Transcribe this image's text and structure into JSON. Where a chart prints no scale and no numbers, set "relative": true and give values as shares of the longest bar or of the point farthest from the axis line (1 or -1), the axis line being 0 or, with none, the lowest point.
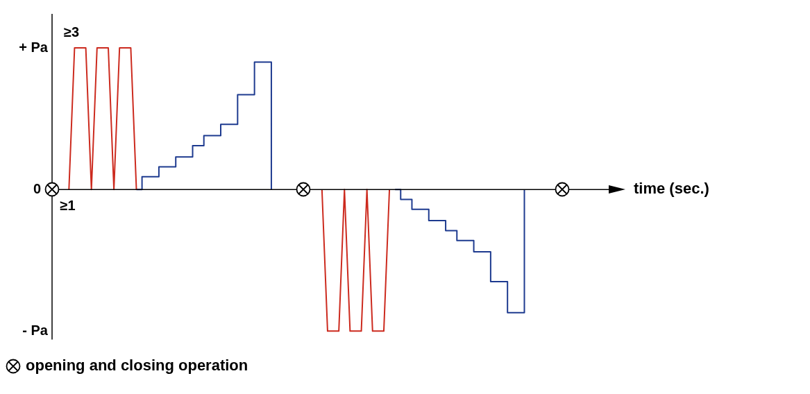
{
  "chart_data": {
    "type": "line",
    "xlabel": "time (sec.)",
    "relative": true,
    "grid": false,
    "line_style": "solid",
    "categories": [
      null,
      null,
      null,
      null,
      null,
      null,
      null,
      null,
      null,
      null,
      null,
      null,
      null,
      null,
      null,
      null,
      null,
      null,
      null,
      null,
      null,
      null,
      null,
      null,
      null,
      null,
      null,
      null,
      null,
      null,
      null,
      null,
      null,
      null,
      null,
      null,
      null,
      null,
      null,
      null,
      null,
      null,
      null,
      null,
      null,
      null,
      null,
      null,
      null,
      null,
      null,
      null,
      null,
      null,
      null,
      null,
      null,
      null,
      null,
      null,
      null,
      null,
      null,
      null,
      null,
      null,
      null,
      null,
      null,
      null,
      null,
      null,
      null,
      null,
      null,
      null,
      null,
      null,
      null,
      null,
      null,
      null,
      null,
      null,
      null,
      null,
      null,
      null,
      null,
      null,
      null,
      null,
      null,
      null,
      null,
      null,
      null,
      null,
      null,
      null
    ],
    "series": [
      {
        "color": "#cc2a1e",
        "values": [
          null,
          null,
          null,
          0,
          1,
          null,
          1,
          0,
          1,
          null,
          1,
          0,
          1,
          null,
          1,
          0,
          null,
          null,
          null,
          null,
          null,
          null,
          null,
          null,
          null,
          null,
          null,
          null,
          null,
          null,
          null,
          null,
          null,
          null,
          null,
          null,
          null,
          null,
          null,
          null,
          null,
          null,
          null,
          null,
          null,
          null,
          null,
          null,
          null,
          null,
          null,
          null,
          null,
          null,
          null,
          null,
          null,
          null,
          null,
          null,
          null,
          null,
          null,
          null,
          null,
          null,
          null,
          null,
          null,
          null,
          null,
          null,
          null,
          null,
          null,
          null,
          null,
          null,
          null,
          null,
          null,
          null,
          null,
          null,
          null,
          null,
          null,
          null,
          null,
          null,
          null,
          null,
          null,
          null,
          null,
          null,
          null,
          null,
          null,
          null
        ]
      },
      {
        "type": "step",
        "color": "#1d3a8f",
        "values": [
          null,
          null,
          null,
          null,
          null,
          null,
          null,
          null,
          null,
          null,
          null,
          null,
          null,
          null,
          null,
          0,
          0.09,
          null,
          null,
          0.16,
          null,
          null,
          0.23,
          null,
          null,
          0.31,
          null,
          0.38,
          null,
          null,
          0.46,
          null,
          null,
          0.67,
          null,
          null,
          0.9,
          null,
          null,
          0,
          null,
          null,
          null,
          null,
          null,
          null,
          null,
          null,
          null,
          null,
          null,
          null,
          null,
          null,
          null,
          null,
          null,
          null,
          null,
          null,
          null,
          null,
          null,
          null,
          null,
          null,
          null,
          null,
          null,
          null,
          null,
          null,
          null,
          null,
          null,
          null,
          null,
          null,
          null,
          null,
          null,
          null,
          null,
          null,
          null,
          null,
          null,
          null,
          null,
          null,
          null,
          null,
          null,
          null,
          null,
          null,
          null,
          null,
          null,
          null
        ]
      },
      {
        "color": "#cc2a1e",
        "values": [
          null,
          null,
          null,
          null,
          null,
          null,
          null,
          null,
          null,
          null,
          null,
          null,
          null,
          null,
          null,
          null,
          null,
          null,
          null,
          null,
          null,
          null,
          null,
          null,
          null,
          null,
          null,
          null,
          null,
          null,
          null,
          null,
          null,
          null,
          null,
          null,
          null,
          null,
          null,
          null,
          null,
          null,
          null,
          null,
          null,
          null,
          null,
          null,
          0,
          -1,
          null,
          -1,
          0,
          -1,
          null,
          -1,
          0,
          -1,
          null,
          -1,
          0,
          null,
          null,
          null,
          null,
          null,
          null,
          null,
          null,
          null,
          null,
          null,
          null,
          null,
          null,
          null,
          null,
          null,
          null,
          null,
          null,
          null,
          null,
          null,
          null,
          null,
          null,
          null,
          null,
          null,
          null,
          null,
          null,
          null,
          null,
          null,
          null,
          null,
          null,
          null
        ]
      },
      {
        "type": "step",
        "color": "#1d3a8f",
        "values": [
          null,
          null,
          null,
          null,
          null,
          null,
          null,
          null,
          null,
          null,
          null,
          null,
          null,
          null,
          null,
          null,
          null,
          null,
          null,
          null,
          null,
          null,
          null,
          null,
          null,
          null,
          null,
          null,
          null,
          null,
          null,
          null,
          null,
          null,
          null,
          null,
          null,
          null,
          null,
          null,
          null,
          null,
          null,
          null,
          null,
          null,
          null,
          null,
          null,
          null,
          null,
          null,
          null,
          null,
          null,
          null,
          null,
          null,
          null,
          null,
          null,
          0,
          -0.07,
          null,
          -0.14,
          null,
          null,
          -0.22,
          null,
          null,
          -0.29,
          null,
          -0.36,
          null,
          null,
          -0.44,
          null,
          null,
          -0.65,
          null,
          null,
          -0.87,
          null,
          null,
          0,
          null,
          null,
          null,
          null,
          null,
          null,
          null,
          null,
          null,
          null,
          null,
          null,
          null,
          null,
          null
        ]
      }
    ],
    "annotations": [
      "+ Pa",
      "0",
      "- Pa",
      "≥3",
      "≥1",
      "opening and closing operation"
    ]
  }
}
